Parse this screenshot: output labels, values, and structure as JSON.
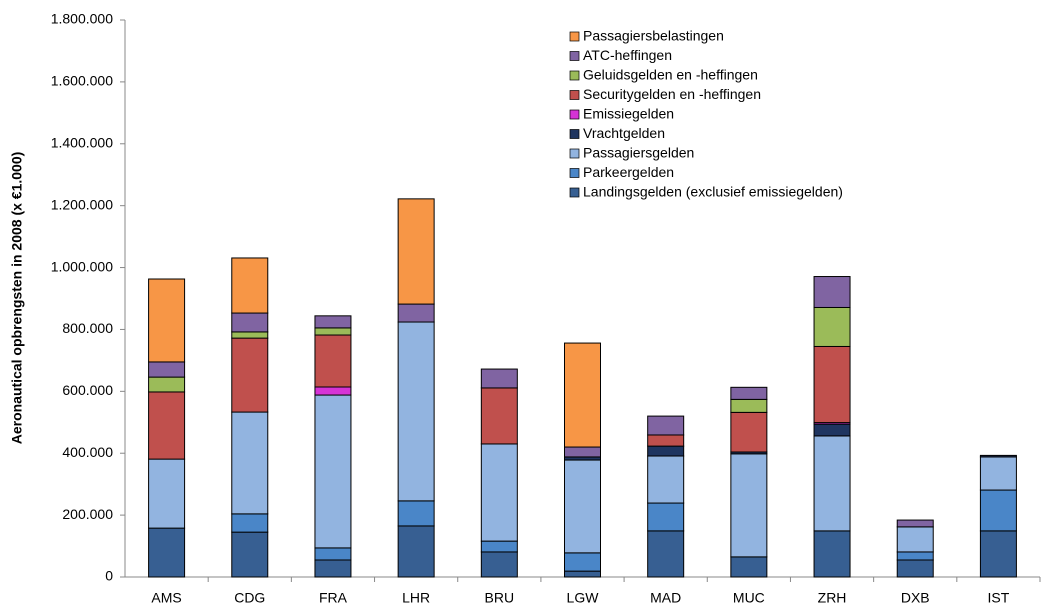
{
  "chart_data": {
    "type": "stacked-bar",
    "y_label": "Aeronautical opbrengsten in 2008 (x €1.000)",
    "categories": [
      "AMS",
      "CDG",
      "FRA",
      "LHR",
      "BRU",
      "LGW",
      "MAD",
      "MUC",
      "ZRH",
      "DXB",
      "IST"
    ],
    "series": [
      {
        "name": "Landingsgelden (exclusief emissiegelden)",
        "color": "#375f92",
        "values": [
          158000,
          145000,
          55000,
          165000,
          81000,
          19000,
          149000,
          65000,
          149000,
          55000,
          149000
        ]
      },
      {
        "name": "Parkeergelden",
        "color": "#4a86c8",
        "values": [
          0,
          59000,
          39000,
          81000,
          35000,
          59000,
          90000,
          0,
          0,
          26000,
          132000
        ]
      },
      {
        "name": "Passagiersgelden",
        "color": "#92b4e0",
        "values": [
          223000,
          329000,
          494000,
          578000,
          314000,
          300000,
          152000,
          333000,
          307000,
          81000,
          107000
        ]
      },
      {
        "name": "Vrachtgelden",
        "color": "#1f3560",
        "values": [
          0,
          0,
          0,
          0,
          0,
          10000,
          32000,
          6000,
          38000,
          0,
          5000
        ]
      },
      {
        "name": "Emissiegelden",
        "color": "#d633d6",
        "values": [
          0,
          0,
          26000,
          0,
          0,
          0,
          0,
          0,
          5000,
          0,
          0
        ]
      },
      {
        "name": "Securitygelden en -heffingen",
        "color": "#c0504d",
        "values": [
          217000,
          239000,
          168000,
          0,
          181000,
          0,
          36000,
          128000,
          246000,
          0,
          0
        ]
      },
      {
        "name": "Geluidsgelden en -heffingen",
        "color": "#9bbb59",
        "values": [
          48000,
          20000,
          23000,
          0,
          0,
          0,
          0,
          42000,
          126000,
          0,
          0
        ]
      },
      {
        "name": "ATC-heffingen",
        "color": "#8064a2",
        "values": [
          49000,
          61000,
          39000,
          58000,
          61000,
          32000,
          61000,
          39000,
          100000,
          22000,
          0
        ]
      },
      {
        "name": "Passagiersbelastingen",
        "color": "#f79646",
        "values": [
          268000,
          178000,
          0,
          340000,
          0,
          336000,
          0,
          0,
          0,
          0,
          0
        ]
      }
    ],
    "ylim": [
      0,
      1800000
    ],
    "yticks": [
      0,
      {
        "value": 200000,
        "label": "200.000"
      },
      {
        "value": 400000,
        "label": "400.000"
      },
      {
        "value": 600000,
        "label": "600.000"
      },
      {
        "value": 800000,
        "label": "800.000"
      },
      {
        "value": 1000000,
        "label": "1.000.000"
      },
      {
        "value": 1200000,
        "label": "1.200.000"
      },
      {
        "value": 1400000,
        "label": "1.400.000"
      },
      {
        "value": 1600000,
        "label": "1.600.000"
      },
      {
        "value": 1800000,
        "label": "1.800.000"
      }
    ],
    "legend_position": "upper right"
  }
}
